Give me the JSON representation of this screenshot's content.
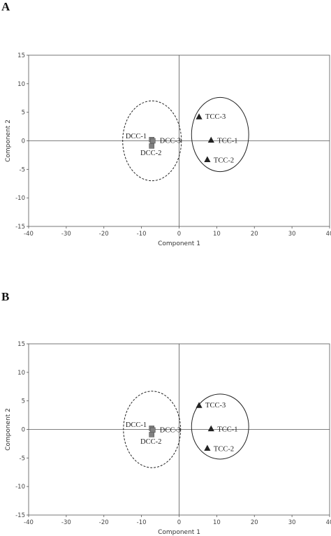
{
  "panels": [
    {
      "letter": "A",
      "chart_data": {
        "type": "scatter",
        "title": "",
        "xlabel": "Component 1",
        "ylabel": "Component 2",
        "xlim": [
          -40,
          40
        ],
        "ylim": [
          -15,
          15
        ],
        "xticks": [
          -40,
          -30,
          -20,
          -10,
          0,
          10,
          20,
          30,
          40
        ],
        "yticks": [
          -15,
          -10,
          -5,
          0,
          5,
          10,
          15
        ],
        "grid": false,
        "zero_lines": true,
        "series": [
          {
            "marker": "square",
            "color": "#808080",
            "points": [
              {
                "label": "DCC-1",
                "x": -7.3,
                "y": 0.2
              },
              {
                "label": "DCC-3",
                "x": -7.0,
                "y": 0.0
              },
              {
                "label": "DCC-2",
                "x": -7.3,
                "y": -0.9
              }
            ]
          },
          {
            "marker": "triangle",
            "color": "#222222",
            "points": [
              {
                "label": "TCC-3",
                "x": 5.3,
                "y": 4.2
              },
              {
                "label": "TCC-1",
                "x": 8.5,
                "y": 0.1
              },
              {
                "label": "TCC-2",
                "x": 7.5,
                "y": -3.3
              }
            ]
          }
        ],
        "ellipses": [
          {
            "group": "DCC",
            "cx": -7.2,
            "cy": 0.0,
            "rx": 7.8,
            "ry": 7.0,
            "style": "dashed"
          },
          {
            "group": "TCC",
            "cx": 10.9,
            "cy": 1.1,
            "rx": 7.6,
            "ry": 6.5,
            "style": "solid"
          }
        ]
      }
    },
    {
      "letter": "B",
      "chart_data": {
        "type": "scatter",
        "title": "",
        "xlabel": "Component 1",
        "ylabel": "Component 2",
        "xlim": [
          -40,
          40
        ],
        "ylim": [
          -15,
          15
        ],
        "xticks": [
          -40,
          -30,
          -20,
          -10,
          0,
          10,
          20,
          30,
          40
        ],
        "yticks": [
          -15,
          -10,
          -5,
          0,
          5,
          10,
          15
        ],
        "grid": false,
        "zero_lines": true,
        "series": [
          {
            "marker": "square",
            "color": "#808080",
            "points": [
              {
                "label": "DCC-1",
                "x": -7.3,
                "y": 0.2
              },
              {
                "label": "DCC-3",
                "x": -7.0,
                "y": -0.1
              },
              {
                "label": "DCC-2",
                "x": -7.3,
                "y": -0.9
              }
            ]
          },
          {
            "marker": "triangle",
            "color": "#222222",
            "points": [
              {
                "label": "TCC-3",
                "x": 5.3,
                "y": 4.2
              },
              {
                "label": "TCC-1",
                "x": 8.5,
                "y": 0.1
              },
              {
                "label": "TCC-2",
                "x": 7.5,
                "y": -3.3
              }
            ]
          }
        ],
        "ellipses": [
          {
            "group": "DCC",
            "cx": -7.2,
            "cy": 0.0,
            "rx": 7.6,
            "ry": 6.7,
            "style": "dashed"
          },
          {
            "group": "TCC",
            "cx": 10.9,
            "cy": 0.5,
            "rx": 7.6,
            "ry": 5.7,
            "style": "solid"
          }
        ]
      }
    }
  ]
}
